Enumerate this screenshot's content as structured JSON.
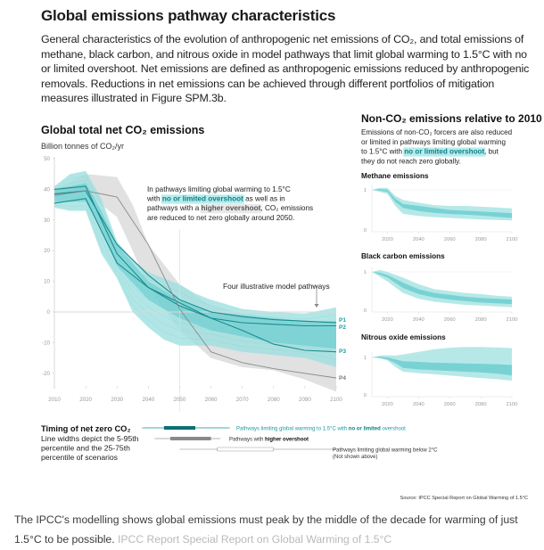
{
  "header": {
    "title": "Global emissions pathway characteristics",
    "intro": "General characteristics of the evolution of anthropogenic net emissions of CO₂, and total emissions of methane, black carbon, and nitrous oxide in model pathways that limit global warming to 1.5°C with no or limited overshoot. Net emissions are defined as anthropogenic emissions reduced by anthropogenic removals. Reductions in net emissions can be achieved through different portfolios of mitigation measures illustrated in Figure SPM.3b."
  },
  "colors": {
    "teal_band_outer": "#9fe0e0",
    "teal_band_inner": "#5cc9cc",
    "teal_line": "#1a8c8c",
    "teal_text": "#1f9aa0",
    "grey_band": "#dcdcdc",
    "grey_line": "#8a8a8a",
    "axis": "#cfcfcf",
    "tick_text": "#9a9a9a"
  },
  "chart_data": [
    {
      "type": "area",
      "id": "co2",
      "title": "Global total net CO₂ emissions",
      "ylabel": "Billion tonnes of CO₂/yr",
      "xlabel": "",
      "xlim": [
        2010,
        2100
      ],
      "ylim": [
        -25,
        50
      ],
      "x_ticks": [
        2010,
        2020,
        2030,
        2040,
        2050,
        2060,
        2070,
        2080,
        2090,
        2100
      ],
      "y_ticks": [
        50,
        40,
        30,
        20,
        10,
        0,
        -10,
        -20
      ],
      "grid": "zero-line",
      "annotation": {
        "lines": [
          [
            "In pathways limiting global warming to 1.5°C"
          ],
          [
            "with ",
            "no or limited overshoot",
            " as well as in"
          ],
          [
            "pathways with a ",
            "higher overshoot",
            ", CO₂ emissions"
          ],
          [
            "are reduced to net zero globally around 2050."
          ]
        ]
      },
      "pathways_label": "Four illustrative model pathways",
      "bands": [
        {
          "name": "Pathways with higher overshoot (5-95th)",
          "color": "grey",
          "x": [
            2010,
            2020,
            2030,
            2035,
            2040,
            2050,
            2060,
            2070,
            2080,
            2090,
            2100
          ],
          "upper": [
            40,
            45,
            44,
            35,
            22,
            9,
            2,
            -1,
            -3,
            -4,
            -5
          ],
          "lower": [
            38,
            39,
            31,
            20,
            8,
            -6,
            -15,
            -18,
            -19,
            -22,
            -26
          ]
        },
        {
          "name": "1.5°C no or limited overshoot (5-95th)",
          "color": "teal_outer",
          "x": [
            2010,
            2015,
            2020,
            2025,
            2030,
            2035,
            2040,
            2045,
            2050,
            2055,
            2060,
            2070,
            2080,
            2090,
            2100
          ],
          "upper": [
            41,
            45,
            46,
            37,
            23,
            17,
            13,
            11,
            9,
            6,
            4,
            1,
            0,
            -0.5,
            1.5
          ],
          "lower": [
            34,
            33,
            33,
            19,
            11,
            0,
            -5,
            -9,
            -11,
            -11,
            -11,
            -13,
            -14,
            -15,
            -18
          ]
        },
        {
          "name": "1.5°C no or limited overshoot (25-75th)",
          "color": "teal_inner",
          "x": [
            2010,
            2020,
            2025,
            2030,
            2040,
            2050,
            2060,
            2070,
            2080,
            2090,
            2100
          ],
          "upper": [
            40,
            42,
            33,
            22,
            10,
            4,
            0,
            -1,
            -2,
            -3,
            -3
          ],
          "lower": [
            36,
            36,
            27,
            15,
            4,
            -2,
            -6,
            -8,
            -10,
            -11,
            -12
          ]
        }
      ],
      "series": [
        {
          "name": "P1",
          "color": "teal",
          "x": [
            2010,
            2020,
            2030,
            2040,
            2050,
            2060,
            2070,
            2080,
            2090,
            2100
          ],
          "y": [
            38.5,
            39.5,
            22,
            12,
            4,
            0,
            -1.5,
            -2.5,
            -3,
            -3.5
          ]
        },
        {
          "name": "P2",
          "color": "teal",
          "x": [
            2010,
            2020,
            2030,
            2040,
            2050,
            2060,
            2070,
            2080,
            2090,
            2100
          ],
          "y": [
            40,
            41,
            19,
            8,
            2,
            -2,
            -3.5,
            -4,
            -4.5,
            -4.5
          ]
        },
        {
          "name": "P3",
          "color": "teal",
          "x": [
            2010,
            2020,
            2030,
            2040,
            2050,
            2060,
            2070,
            2080,
            2090,
            2100
          ],
          "y": [
            35.5,
            37,
            16,
            8,
            3,
            -2,
            -6,
            -10.5,
            -12.5,
            -13
          ]
        },
        {
          "name": "P4",
          "color": "grey",
          "x": [
            2010,
            2020,
            2030,
            2040,
            2050,
            2060,
            2070,
            2080,
            2090,
            2100
          ],
          "y": [
            38,
            39.5,
            37.5,
            22,
            1,
            -13,
            -16.5,
            -18.5,
            -20,
            -21.5
          ]
        }
      ]
    },
    {
      "type": "table",
      "id": "timing",
      "title": "Timing of net zero CO₂",
      "subtitle_lines": [
        "Line widths depict the 5-95th",
        "percentile and the 25-75th",
        "percentile of scenarios"
      ],
      "rows": [
        {
          "label_parts": [
            "Pathways limiting global warming to 1.5°C with ",
            "no or limited",
            " overshoot"
          ],
          "color": "teal",
          "range_5_95": [
            2038,
            2066
          ],
          "range_25_75": [
            2045,
            2055
          ]
        },
        {
          "label_parts": [
            "Pathways with ",
            "higher overshoot"
          ],
          "color": "grey",
          "range_5_95": [
            2042,
            2063
          ],
          "range_25_75": [
            2047,
            2060
          ]
        },
        {
          "label_parts": [
            "Pathways limiting global warming below 2°C",
            "(Not shown above)"
          ],
          "color": "outline",
          "range_5_95": [
            2050,
            2100
          ],
          "range_25_75": [
            2062,
            2080
          ]
        }
      ]
    },
    {
      "type": "area",
      "id": "non_co2_header",
      "title": "Non-CO₂ emissions relative to 2010",
      "description_lines": [
        [
          "Emissions of non-CO₂ forcers are also reduced"
        ],
        [
          "or limited in pathways limiting global warming"
        ],
        [
          "to 1.5°C with ",
          "no or limited overshoot",
          ", but"
        ],
        [
          "they do not reach zero globally."
        ]
      ]
    },
    {
      "type": "area",
      "id": "methane",
      "title": "Methane emissions",
      "xlim": [
        2010,
        2100
      ],
      "ylim": [
        0,
        1.15
      ],
      "x_ticks": [
        2020,
        2040,
        2060,
        2080,
        2100
      ],
      "y_ticks": [
        1,
        0
      ],
      "x": [
        2010,
        2015,
        2020,
        2025,
        2030,
        2040,
        2050,
        2060,
        2070,
        2080,
        2090,
        2100
      ],
      "outer_upper": [
        1,
        1.05,
        1.05,
        0.85,
        0.75,
        0.68,
        0.62,
        0.6,
        0.6,
        0.58,
        0.56,
        0.54
      ],
      "outer_lower": [
        1,
        0.95,
        0.9,
        0.6,
        0.4,
        0.35,
        0.32,
        0.3,
        0.28,
        0.26,
        0.25,
        0.24
      ],
      "inner_upper": [
        1,
        1.02,
        1.0,
        0.78,
        0.65,
        0.6,
        0.55,
        0.5,
        0.48,
        0.46,
        0.44,
        0.42
      ],
      "inner_lower": [
        1,
        0.98,
        0.95,
        0.7,
        0.55,
        0.47,
        0.43,
        0.4,
        0.38,
        0.36,
        0.33,
        0.3
      ]
    },
    {
      "type": "area",
      "id": "black_carbon",
      "title": "Black carbon emissions",
      "xlim": [
        2010,
        2100
      ],
      "ylim": [
        0,
        1.15
      ],
      "x_ticks": [
        2020,
        2040,
        2060,
        2080,
        2100
      ],
      "y_ticks": [
        1,
        0
      ],
      "x": [
        2010,
        2015,
        2020,
        2030,
        2040,
        2050,
        2060,
        2070,
        2080,
        2090,
        2100
      ],
      "outer_upper": [
        1,
        1.05,
        1.0,
        0.85,
        0.68,
        0.55,
        0.5,
        0.45,
        0.42,
        0.38,
        0.35
      ],
      "outer_lower": [
        1,
        0.88,
        0.75,
        0.45,
        0.3,
        0.22,
        0.18,
        0.14,
        0.12,
        0.1,
        0.08
      ],
      "inner_upper": [
        1,
        0.98,
        0.92,
        0.72,
        0.55,
        0.45,
        0.4,
        0.35,
        0.32,
        0.3,
        0.28
      ],
      "inner_lower": [
        1,
        0.93,
        0.85,
        0.58,
        0.42,
        0.33,
        0.28,
        0.24,
        0.2,
        0.18,
        0.16
      ]
    },
    {
      "type": "area",
      "id": "nitrous_oxide",
      "title": "Nitrous oxide emissions",
      "xlim": [
        2010,
        2100
      ],
      "ylim": [
        0,
        1.4
      ],
      "x_ticks": [
        2020,
        2040,
        2060,
        2080,
        2100
      ],
      "y_ticks": [
        1,
        0
      ],
      "x": [
        2010,
        2015,
        2020,
        2025,
        2030,
        2040,
        2050,
        2060,
        2070,
        2080,
        2090,
        2100
      ],
      "outer_upper": [
        1,
        1.05,
        1.06,
        1.05,
        1.08,
        1.15,
        1.22,
        1.26,
        1.28,
        1.28,
        1.27,
        1.25
      ],
      "outer_lower": [
        1,
        0.98,
        0.92,
        0.75,
        0.62,
        0.58,
        0.55,
        0.52,
        0.48,
        0.45,
        0.42,
        0.38
      ],
      "inner_upper": [
        1,
        1.02,
        1.0,
        0.95,
        0.9,
        0.88,
        0.86,
        0.85,
        0.84,
        0.83,
        0.82,
        0.8
      ],
      "inner_lower": [
        1,
        0.98,
        0.95,
        0.85,
        0.72,
        0.68,
        0.66,
        0.64,
        0.62,
        0.6,
        0.57,
        0.52
      ]
    }
  ],
  "source": "Source: IPCC Special Report on Global Warming of 1.5°C",
  "caption": {
    "text": "The IPCC's modelling shows global emissions must peak by the middle of the decade for warming of just 1.5°C to be possible.",
    "credit": "IPCC Report Special Report on Global Warming of 1.5°C"
  }
}
